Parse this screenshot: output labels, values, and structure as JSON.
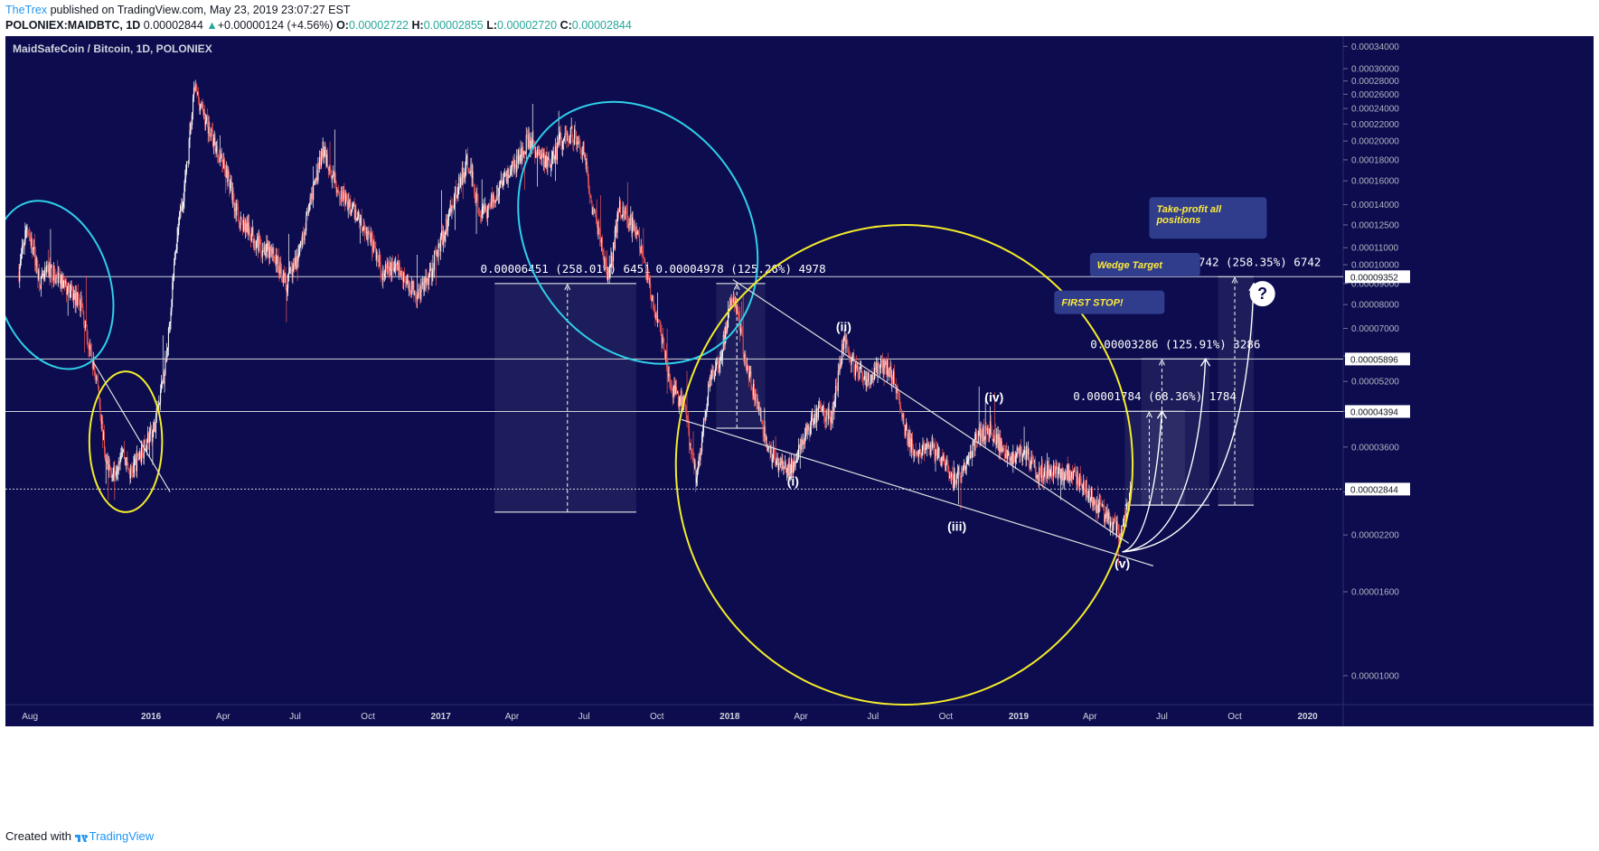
{
  "header": {
    "author": "TheTrex",
    "published": "published on TradingView.com, May 23, 2019 23:07:27 EST",
    "symbol": "POLONIEX:MAIDBTC, 1D",
    "last": "0.00002844",
    "change_arrow": "▲",
    "change": "+0.00000124 (+4.56%)",
    "o_label": "O:",
    "o_value": "0.00002722",
    "h_label": "H:",
    "h_value": "0.00002855",
    "l_label": "L:",
    "l_value": "0.00002720",
    "c_label": "C:",
    "c_value": "0.00002844"
  },
  "footer": {
    "created": "Created with",
    "brand": "TradingView",
    "logo_icon": "tradingview-logo-icon"
  },
  "colors": {
    "background": "#0c0c4f",
    "up": "#ffffff",
    "down": "#ef5350",
    "cyan": "#2fd0e8",
    "yellow": "#f5ec2a",
    "callout": "#2f3d8c",
    "callout_text": "#ffeb3b"
  },
  "chart_data": {
    "type": "candlestick",
    "title": "MaidSafeCoin / Bitcoin, 1D, POLONIEX",
    "y_scale": "log",
    "ylim": [
      8.5e-06,
      0.00036
    ],
    "x_range": [
      "2015-07-01",
      "2020-02-15"
    ],
    "y_ticks": [
      "0.00034000",
      "0.00030000",
      "0.00028000",
      "0.00026000",
      "0.00024000",
      "0.00022000",
      "0.00020000",
      "0.00018000",
      "0.00016000",
      "0.00014000",
      "0.00012500",
      "0.00011000",
      "0.00010000",
      "0.00009000",
      "0.00008000",
      "0.00007000",
      "0.00006000",
      "0.00005200",
      "0.00004400",
      "0.00003600",
      "0.00002800",
      "0.00002200",
      "0.00001600",
      "0.00001000"
    ],
    "x_ticks": [
      {
        "label": "Aug",
        "date": "2015-08-01",
        "bold": false
      },
      {
        "label": "2016",
        "date": "2016-01-01",
        "bold": true
      },
      {
        "label": "Apr",
        "date": "2016-04-01",
        "bold": false
      },
      {
        "label": "Jul",
        "date": "2016-07-01",
        "bold": false
      },
      {
        "label": "Oct",
        "date": "2016-10-01",
        "bold": false
      },
      {
        "label": "2017",
        "date": "2017-01-01",
        "bold": true
      },
      {
        "label": "Apr",
        "date": "2017-04-01",
        "bold": false
      },
      {
        "label": "Jul",
        "date": "2017-07-01",
        "bold": false
      },
      {
        "label": "Oct",
        "date": "2017-10-01",
        "bold": false
      },
      {
        "label": "2018",
        "date": "2018-01-01",
        "bold": true
      },
      {
        "label": "Apr",
        "date": "2018-04-01",
        "bold": false
      },
      {
        "label": "Jul",
        "date": "2018-07-01",
        "bold": false
      },
      {
        "label": "Oct",
        "date": "2018-10-01",
        "bold": false
      },
      {
        "label": "2019",
        "date": "2019-01-01",
        "bold": true
      },
      {
        "label": "Apr",
        "date": "2019-04-01",
        "bold": false
      },
      {
        "label": "Jul",
        "date": "2019-07-01",
        "bold": false
      },
      {
        "label": "Oct",
        "date": "2019-10-01",
        "bold": false
      },
      {
        "label": "2020",
        "date": "2020-01-01",
        "bold": true
      }
    ],
    "price_path": [
      [
        "2015-07-18",
        9.6e-05
      ],
      [
        "2015-07-28",
        0.000125
      ],
      [
        "2015-08-05",
        0.000108
      ],
      [
        "2015-08-15",
        9e-05
      ],
      [
        "2015-08-25",
        9.8e-05
      ],
      [
        "2015-09-05",
        9.2e-05
      ],
      [
        "2015-09-20",
        8.6e-05
      ],
      [
        "2015-10-05",
        8e-05
      ],
      [
        "2015-10-15",
        6.2e-05
      ],
      [
        "2015-10-25",
        5.2e-05
      ],
      [
        "2015-11-05",
        3.3e-05
      ],
      [
        "2015-11-15",
        3.1e-05
      ],
      [
        "2015-11-25",
        3.6e-05
      ],
      [
        "2015-12-05",
        3.1e-05
      ],
      [
        "2015-12-20",
        3.5e-05
      ],
      [
        "2016-01-05",
        4e-05
      ],
      [
        "2016-01-20",
        5.8e-05
      ],
      [
        "2016-02-01",
        0.00011
      ],
      [
        "2016-02-15",
        0.00017
      ],
      [
        "2016-02-25",
        0.00027
      ],
      [
        "2016-03-05",
        0.00024
      ],
      [
        "2016-03-20",
        0.0002
      ],
      [
        "2016-04-05",
        0.00017
      ],
      [
        "2016-04-20",
        0.00013
      ],
      [
        "2016-05-05",
        0.00012
      ],
      [
        "2016-05-20",
        0.00011
      ],
      [
        "2016-06-05",
        0.000105
      ],
      [
        "2016-06-20",
        9e-05
      ],
      [
        "2016-07-05",
        0.000105
      ],
      [
        "2016-07-20",
        0.00014
      ],
      [
        "2016-08-05",
        0.00019
      ],
      [
        "2016-08-20",
        0.00016
      ],
      [
        "2016-09-05",
        0.00014
      ],
      [
        "2016-09-20",
        0.00013
      ],
      [
        "2016-10-05",
        0.000115
      ],
      [
        "2016-10-20",
        9.5e-05
      ],
      [
        "2016-11-05",
        0.0001
      ],
      [
        "2016-11-20",
        9e-05
      ],
      [
        "2016-12-05",
        8.5e-05
      ],
      [
        "2016-12-20",
        9.8e-05
      ],
      [
        "2017-01-05",
        0.00012
      ],
      [
        "2017-01-20",
        0.00015
      ],
      [
        "2017-02-05",
        0.00018
      ],
      [
        "2017-02-20",
        0.00013
      ],
      [
        "2017-03-05",
        0.00014
      ],
      [
        "2017-03-20",
        0.00016
      ],
      [
        "2017-04-05",
        0.000175
      ],
      [
        "2017-04-20",
        0.0002
      ],
      [
        "2017-05-05",
        0.000185
      ],
      [
        "2017-05-20",
        0.000175
      ],
      [
        "2017-06-01",
        0.0002
      ],
      [
        "2017-06-15",
        0.00021
      ],
      [
        "2017-07-01",
        0.00019
      ],
      [
        "2017-07-10",
        0.00014
      ],
      [
        "2017-07-20",
        0.00012
      ],
      [
        "2017-08-01",
        9e-05
      ],
      [
        "2017-08-15",
        0.00014
      ],
      [
        "2017-08-25",
        0.00013
      ],
      [
        "2017-09-05",
        0.00012
      ],
      [
        "2017-09-15",
        0.0001
      ],
      [
        "2017-10-05",
        7e-05
      ],
      [
        "2017-10-20",
        5e-05
      ],
      [
        "2017-11-05",
        4.5e-05
      ],
      [
        "2017-11-20",
        3e-05
      ],
      [
        "2017-12-05",
        5e-05
      ],
      [
        "2017-12-20",
        6e-05
      ],
      [
        "2018-01-05",
        8.5e-05
      ],
      [
        "2018-01-20",
        6e-05
      ],
      [
        "2018-02-05",
        4.5e-05
      ],
      [
        "2018-02-20",
        3.5e-05
      ],
      [
        "2018-03-05",
        3.3e-05
      ],
      [
        "2018-03-15",
        3.1e-05
      ],
      [
        "2018-03-25",
        3.4e-05
      ],
      [
        "2018-04-10",
        4e-05
      ],
      [
        "2018-04-25",
        4.5e-05
      ],
      [
        "2018-05-10",
        4.2e-05
      ],
      [
        "2018-05-25",
        6.5e-05
      ],
      [
        "2018-06-10",
        5.5e-05
      ],
      [
        "2018-06-25",
        5.2e-05
      ],
      [
        "2018-07-10",
        5.8e-05
      ],
      [
        "2018-07-25",
        5.5e-05
      ],
      [
        "2018-08-10",
        4e-05
      ],
      [
        "2018-08-25",
        3.4e-05
      ],
      [
        "2018-09-10",
        3.6e-05
      ],
      [
        "2018-09-25",
        3.4e-05
      ],
      [
        "2018-10-10",
        2.9e-05
      ],
      [
        "2018-10-25",
        3.3e-05
      ],
      [
        "2018-11-10",
        3.8e-05
      ],
      [
        "2018-11-25",
        4e-05
      ],
      [
        "2018-12-10",
        3.6e-05
      ],
      [
        "2018-12-25",
        3.4e-05
      ],
      [
        "2019-01-10",
        3.5e-05
      ],
      [
        "2019-01-25",
        3.1e-05
      ],
      [
        "2019-02-10",
        3.2e-05
      ],
      [
        "2019-02-25",
        3.1e-05
      ],
      [
        "2019-03-10",
        3.1e-05
      ],
      [
        "2019-03-25",
        2.9e-05
      ],
      [
        "2019-04-10",
        2.6e-05
      ],
      [
        "2019-04-25",
        2.4e-05
      ],
      [
        "2019-05-10",
        2.2e-05
      ],
      [
        "2019-05-20",
        2.7e-05
      ],
      [
        "2019-05-23",
        2.84e-05
      ]
    ],
    "horizontal_lines": [
      {
        "value": 9.352e-05,
        "label": "0.00009352",
        "style": "solid"
      },
      {
        "value": 5.896e-05,
        "label": "0.00005896",
        "style": "solid"
      },
      {
        "value": 4.394e-05,
        "label": "0.00004394",
        "style": "solid"
      },
      {
        "value": 2.844e-05,
        "label": "0.00002844",
        "style": "dotted"
      }
    ],
    "measure_boxes": [
      {
        "x0": "2017-03-10",
        "x1": "2017-09-05",
        "y_top": 9e-05,
        "y_bot": 2.5e-05,
        "arrow_x": "2017-06-10",
        "label": "0.00006451 (258.01%) 6451"
      },
      {
        "x0": "2017-12-15",
        "x1": "2018-02-15",
        "y_top": 9e-05,
        "y_bot": 4e-05,
        "arrow_x": "2018-01-10",
        "label": "0.00004978 (125.26%) 4978"
      },
      {
        "x0": "2019-05-15",
        "x1": "2019-07-30",
        "y_top": 4.4e-05,
        "y_bot": 2.6e-05,
        "arrow_x": "2019-06-15",
        "label": "0.00001784 (68.36%) 1784"
      },
      {
        "x0": "2019-06-05",
        "x1": "2019-08-30",
        "y_top": 5.9e-05,
        "y_bot": 2.6e-05,
        "arrow_x": "2019-07-01",
        "label": "0.00003286 (125.91%) 3286"
      },
      {
        "x0": "2019-09-10",
        "x1": "2019-10-25",
        "y_top": 9.35e-05,
        "y_bot": 2.6e-05,
        "arrow_x": "2019-10-01",
        "label": "0.00006742 (258.35%) 6742"
      }
    ],
    "wave_labels": [
      {
        "text": "(i)",
        "date": "2018-03-22",
        "value": 2.9e-05
      },
      {
        "text": "(ii)",
        "date": "2018-05-25",
        "value": 6.9e-05
      },
      {
        "text": "(iii)",
        "date": "2018-10-15",
        "value": 2.25e-05
      },
      {
        "text": "(iv)",
        "date": "2018-12-01",
        "value": 4.65e-05
      },
      {
        "text": "(v)",
        "date": "2019-05-12",
        "value": 1.83e-05
      }
    ],
    "callouts": [
      {
        "text": "FIRST STOP!",
        "date": "2019-02-15",
        "value": 8.1e-05
      },
      {
        "text": "Wedge Target",
        "date": "2019-04-01",
        "value": 0.0001
      },
      {
        "text": "Take-profit all positions",
        "date": "2019-06-15",
        "value": 0.00013
      }
    ],
    "question_icon": "question-circle-icon"
  }
}
